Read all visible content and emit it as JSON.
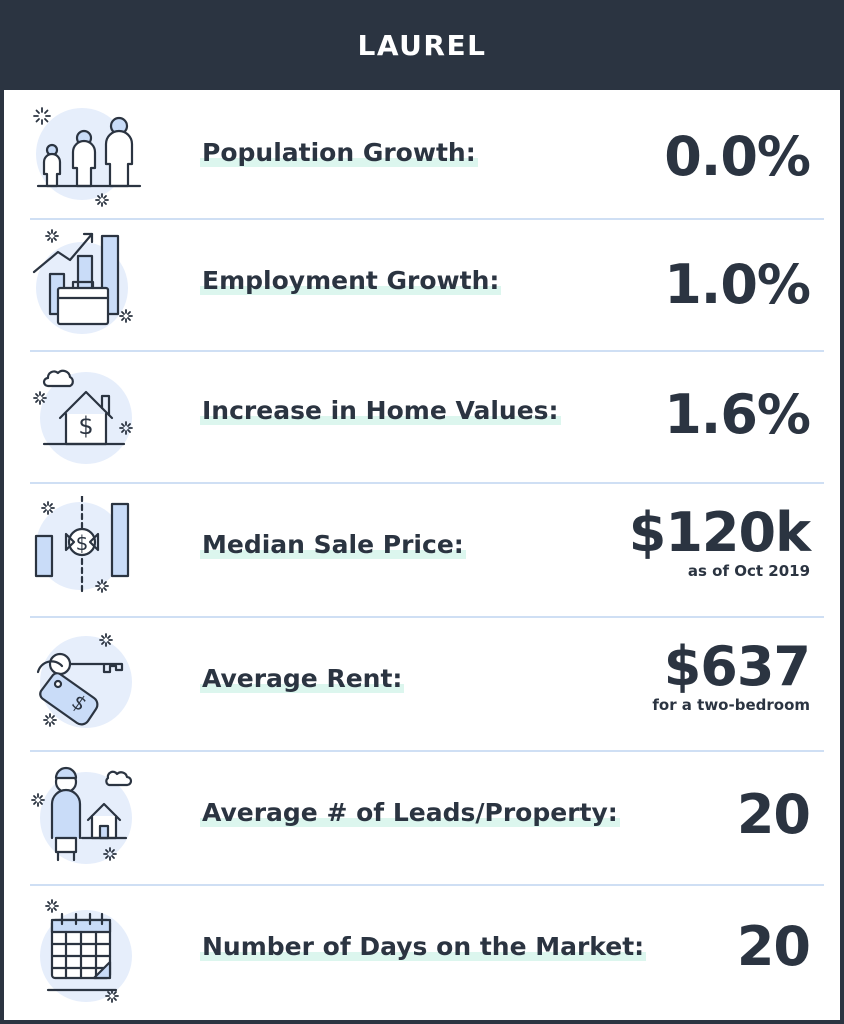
{
  "header": {
    "title": "LAUREL"
  },
  "rows": [
    {
      "label": "Population Growth:",
      "value": "0.0%",
      "note": "",
      "icon": "people-icon"
    },
    {
      "label": "Employment Growth:",
      "value": "1.0%",
      "note": "",
      "icon": "briefcase-chart-icon"
    },
    {
      "label": "Increase in Home Values:",
      "value": "1.6%",
      "note": "",
      "icon": "house-dollar-icon"
    },
    {
      "label": "Median Sale Price:",
      "value": "$120k",
      "note": "as  of Oct 2019",
      "icon": "price-chart-icon"
    },
    {
      "label": "Average Rent:",
      "value": "$637",
      "note": "for a two-bedroom",
      "icon": "key-tag-icon"
    },
    {
      "label": "Average # of Leads/Property:",
      "value": "20",
      "note": "",
      "icon": "person-house-icon"
    },
    {
      "label": "Number of Days on the Market:",
      "value": "20",
      "note": "",
      "icon": "calendar-icon"
    }
  ],
  "colors": {
    "dark": "#2b3441",
    "icon_bg": "#e6eefb",
    "icon_fill": "#c9dcf8",
    "divider": "#cfdff4",
    "highlight": "#dcf6ee"
  }
}
